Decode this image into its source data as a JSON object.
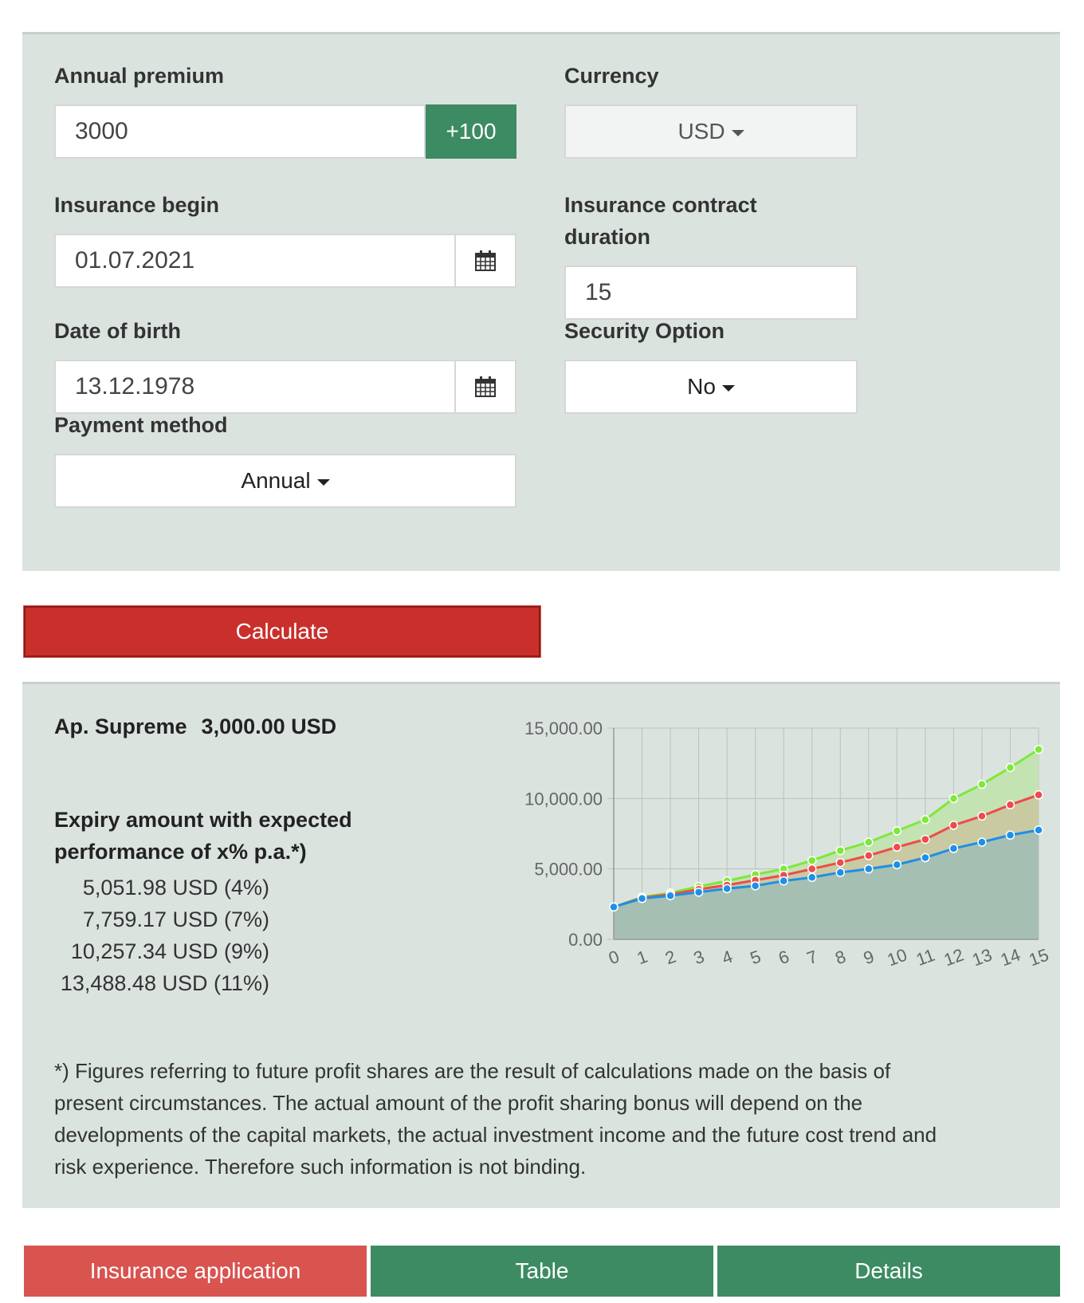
{
  "form": {
    "annual_premium": {
      "label": "Annual premium",
      "value": "3000",
      "increment_label": "+100"
    },
    "currency": {
      "label": "Currency",
      "value": "USD"
    },
    "insurance_begin": {
      "label": "Insurance begin",
      "value": "01.07.2021"
    },
    "contract_duration": {
      "label_line1": "Insurance contract",
      "label_line2": "duration",
      "value": "15"
    },
    "date_of_birth": {
      "label": "Date of birth",
      "value": "13.12.1978"
    },
    "security_option": {
      "label": "Security Option",
      "value": "No"
    },
    "payment_method": {
      "label": "Payment method",
      "value": "Annual"
    },
    "icons": {
      "calendar": "calendar-icon",
      "dropdown": "caret-down-icon"
    }
  },
  "calculate_label": "Calculate",
  "result": {
    "product": "Ap. Supreme",
    "premium": "3,000.00 USD",
    "expiry_heading_line1": "Expiry amount with expected",
    "expiry_heading_line2": "performance of x% p.a.*)",
    "expiry_amounts": [
      "5,051.98 USD (4%)",
      "7,759.17 USD (7%)",
      "10,257.34 USD (9%)",
      "13,488.48 USD (11%)"
    ],
    "footnote_lines": [
      "*) Figures referring to future profit shares are the result of calculations made on the basis of",
      "present circumstances. The actual amount of the profit sharing bonus will depend on the",
      "developments of the capital markets, the actual investment income and the future cost trend and",
      "risk experience. Therefore such information is not binding."
    ]
  },
  "chart_data": {
    "type": "area",
    "x": [
      0,
      1,
      2,
      3,
      4,
      5,
      6,
      7,
      8,
      9,
      10,
      11,
      12,
      13,
      14,
      15
    ],
    "y_ticks": [
      "0.00",
      "5,000.00",
      "10,000.00",
      "15,000.00"
    ],
    "ylim": [
      0,
      15000
    ],
    "grid": true,
    "series": [
      {
        "color": "#7de83a",
        "fill": "#c3e3b3",
        "values": [
          2300,
          3000,
          3300,
          3750,
          4150,
          4600,
          5000,
          5600,
          6300,
          6900,
          7700,
          8500,
          10000,
          11000,
          12200,
          13488
        ]
      },
      {
        "color": "#ef4b4b",
        "fill": "#c9c9a2",
        "values": [
          2300,
          2950,
          3200,
          3550,
          3850,
          4200,
          4550,
          5000,
          5450,
          5950,
          6550,
          7100,
          8100,
          8750,
          9550,
          10257
        ]
      },
      {
        "color": "#1e8fe6",
        "fill": "#a6bfb3",
        "values": [
          2300,
          2900,
          3100,
          3350,
          3600,
          3800,
          4150,
          4400,
          4750,
          5000,
          5300,
          5800,
          6450,
          6900,
          7400,
          7759
        ]
      }
    ]
  },
  "tabs": [
    {
      "label": "Insurance application",
      "color": "#d9534f"
    },
    {
      "label": "Table",
      "color": "#3d8b63"
    },
    {
      "label": "Details",
      "color": "#3d8b63"
    }
  ]
}
